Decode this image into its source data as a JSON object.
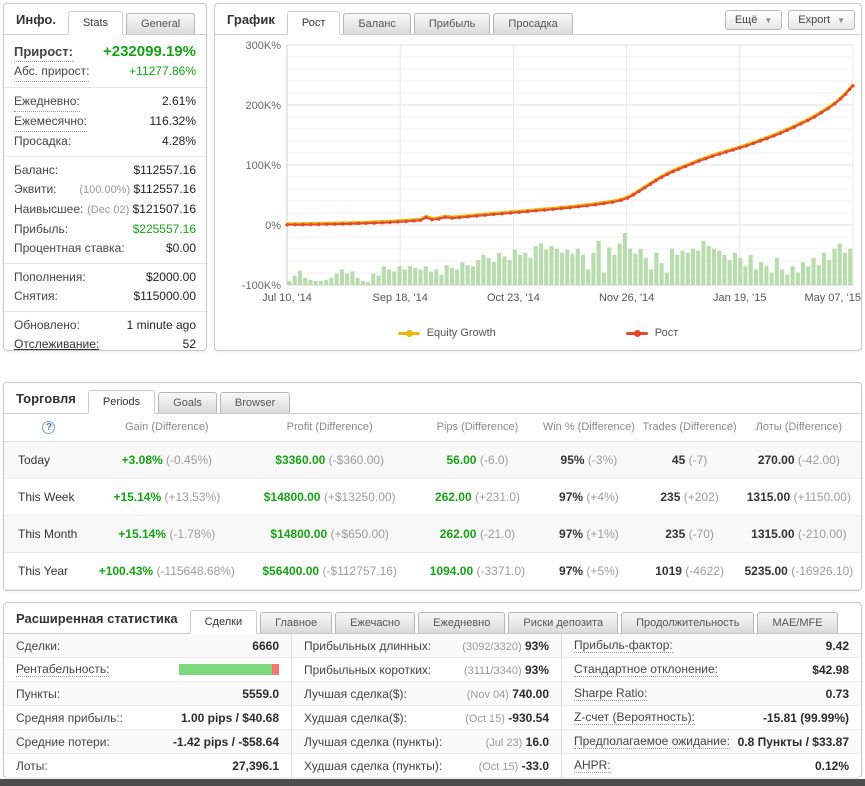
{
  "colors": {
    "green": "#17a117",
    "line_red": "#e5492c",
    "equity_yellow": "#e9b711",
    "volume_green": "#b9dcae"
  },
  "info": {
    "title": "Инфо.",
    "tabs": [
      {
        "label": "Stats"
      },
      {
        "label": "General"
      }
    ],
    "gain_label": "Прирост:",
    "gain_value": "+232099.19%",
    "abs_gain_label": "Абс. прирост:",
    "abs_gain_value": "+11277.86%",
    "group2": [
      {
        "label": "Ежедневно:",
        "value": "2.61%"
      },
      {
        "label": "Ежемесячно:",
        "value": "116.32%"
      },
      {
        "label": "Просадка:",
        "value": "4.28%"
      }
    ],
    "group3": [
      {
        "label": "Баланс:",
        "pre": "",
        "value": "$112557.16"
      },
      {
        "label": "Эквити:",
        "pre": "(100.00%)",
        "value": "$112557.16"
      },
      {
        "label": "Наивысшее:",
        "pre": "(Dec 02)",
        "value": "$121507.16"
      },
      {
        "label": "Прибыль:",
        "pre": "",
        "value": "$225557.16"
      },
      {
        "label": "Процентная ставка:",
        "pre": "",
        "value": "$0.00"
      }
    ],
    "group4": [
      {
        "label": "Пополнения:",
        "value": "$2000.00"
      },
      {
        "label": "Снятия:",
        "value": "$115000.00"
      }
    ],
    "updated_label": "Обновлено:",
    "updated_value": "1 minute ago",
    "tracking_label": "Отслеживание:",
    "tracking_value": "52"
  },
  "chart": {
    "title": "График",
    "tabs": [
      {
        "label": "Рост"
      },
      {
        "label": "Баланс"
      },
      {
        "label": "Прибыль"
      },
      {
        "label": "Просадка"
      }
    ],
    "more_button": "Ещё",
    "export_button": "Export",
    "legend": [
      {
        "label": "Equity Growth",
        "color": "#e9b711"
      },
      {
        "label": "Рост",
        "color": "#e5492c"
      }
    ]
  },
  "chart_data": {
    "type": "line",
    "title": "Рост",
    "ylabel": "",
    "xlabel": "",
    "y_unit": "K%",
    "ylim": [
      -100,
      300
    ],
    "y_ticks": [
      {
        "v": 300,
        "label": "300K%"
      },
      {
        "v": 200,
        "label": "200K%"
      },
      {
        "v": 100,
        "label": "100K%"
      },
      {
        "v": 0,
        "label": "0%"
      },
      {
        "v": -100,
        "label": "-100K%"
      }
    ],
    "x_ticks": [
      "Jul 10, '14",
      "Sep 18, '14",
      "Oct 23, '14",
      "Nov 26, '14",
      "Jan 19, '15",
      "May 07, '15"
    ],
    "series": [
      {
        "name": "Equity Growth",
        "color": "#e9b711"
      },
      {
        "name": "Рост",
        "color": "#e5492c"
      }
    ],
    "points": [
      [
        0,
        0.3
      ],
      [
        1.4,
        0.4
      ],
      [
        2.8,
        0.5
      ],
      [
        4.2,
        0.7
      ],
      [
        5.6,
        0.9
      ],
      [
        7,
        1.1
      ],
      [
        8.4,
        1.4
      ],
      [
        9.8,
        1.7
      ],
      [
        11.2,
        2.0
      ],
      [
        12.6,
        2.4
      ],
      [
        14,
        2.8
      ],
      [
        15.4,
        3.3
      ],
      [
        16.8,
        3.8
      ],
      [
        18.2,
        4.4
      ],
      [
        19.6,
        5.1
      ],
      [
        21,
        5.9
      ],
      [
        22.4,
        6.8
      ],
      [
        23.6,
        7.8
      ],
      [
        24.6,
        12.5
      ],
      [
        25.6,
        9
      ],
      [
        26.8,
        10
      ],
      [
        28,
        13
      ],
      [
        29.2,
        11.5
      ],
      [
        30.5,
        12.5
      ],
      [
        32,
        13.8
      ],
      [
        33.5,
        15
      ],
      [
        35,
        16.3
      ],
      [
        36.5,
        17.6
      ],
      [
        38,
        18.8
      ],
      [
        39.5,
        20
      ],
      [
        41,
        21.2
      ],
      [
        42.5,
        22.4
      ],
      [
        44,
        23.6
      ],
      [
        45.5,
        24.9
      ],
      [
        47,
        26.2
      ],
      [
        48.5,
        27.5
      ],
      [
        50,
        28.9
      ],
      [
        51.5,
        30.4
      ],
      [
        53,
        32
      ],
      [
        54.5,
        33.8
      ],
      [
        56,
        35.8
      ],
      [
        57.5,
        38
      ],
      [
        59,
        41
      ],
      [
        60.2,
        45
      ],
      [
        61.2,
        50
      ],
      [
        62.2,
        56
      ],
      [
        63.2,
        62
      ],
      [
        64.2,
        68
      ],
      [
        65.2,
        74
      ],
      [
        66.2,
        79.5
      ],
      [
        67.2,
        84.5
      ],
      [
        68.2,
        89
      ],
      [
        69.2,
        93
      ],
      [
        70.4,
        97.5
      ],
      [
        71.6,
        102
      ],
      [
        72.8,
        106.5
      ],
      [
        74,
        110.5
      ],
      [
        75.2,
        114.5
      ],
      [
        76.4,
        118
      ],
      [
        77.6,
        121.5
      ],
      [
        78.8,
        125
      ],
      [
        80,
        128.5
      ],
      [
        81.2,
        132
      ],
      [
        82.4,
        136
      ],
      [
        83.6,
        140
      ],
      [
        84.8,
        144
      ],
      [
        86,
        148.5
      ],
      [
        87.2,
        153
      ],
      [
        88.4,
        158
      ],
      [
        89.6,
        163
      ],
      [
        90.8,
        168.5
      ],
      [
        92,
        174
      ],
      [
        93.2,
        180
      ],
      [
        94.4,
        187
      ],
      [
        95.6,
        194
      ],
      [
        96.8,
        202
      ],
      [
        97.8,
        210
      ],
      [
        98.7,
        218
      ],
      [
        99.4,
        226
      ],
      [
        100,
        232
      ]
    ],
    "volume": {
      "color": "#b9dcae",
      "values": [
        8,
        18,
        28,
        14,
        10,
        8,
        8,
        10,
        14,
        22,
        30,
        22,
        26,
        14,
        8,
        6,
        22,
        18,
        36,
        30,
        26,
        36,
        30,
        36,
        33,
        30,
        36,
        26,
        30,
        20,
        38,
        33,
        30,
        44,
        38,
        36,
        48,
        58,
        52,
        44,
        62,
        55,
        48,
        68,
        58,
        62,
        52,
        75,
        80,
        68,
        75,
        70,
        62,
        68,
        60,
        70,
        58,
        30,
        62,
        85,
        24,
        72,
        58,
        80,
        100,
        70,
        60,
        70,
        52,
        30,
        62,
        42,
        24,
        70,
        58,
        66,
        62,
        70,
        66,
        85,
        75,
        70,
        66,
        58,
        48,
        62,
        52,
        36,
        58,
        30,
        44,
        36,
        24,
        52,
        30,
        20,
        36,
        24,
        44,
        36,
        52,
        38,
        62,
        48,
        70,
        80,
        62,
        70
      ]
    },
    "legend_position": "bottom",
    "grid": true
  },
  "trading": {
    "title": "Торговля",
    "tabs": [
      {
        "label": "Periods"
      },
      {
        "label": "Goals"
      },
      {
        "label": "Browser"
      }
    ],
    "help_icon": "?",
    "columns": [
      "Gain (Difference)",
      "Profit (Difference)",
      "Pips (Difference)",
      "Win % (Difference)",
      "Trades (Difference)",
      "Лоты (Difference)"
    ],
    "rows": [
      {
        "period": "Today",
        "gain": "+3.08%",
        "gain_diff": "(-0.45%)",
        "profit": "$3360.00",
        "profit_diff": "(-$360.00)",
        "pips": "56.00",
        "pips_diff": "(-6.0)",
        "win": "95%",
        "win_diff": "(-3%)",
        "trades": "45",
        "trades_diff": "(-7)",
        "lots": "270.00",
        "lots_diff": "(-42.00)"
      },
      {
        "period": "This Week",
        "gain": "+15.14%",
        "gain_diff": "(+13.53%)",
        "profit": "$14800.00",
        "profit_diff": "(+$13250.00)",
        "pips": "262.00",
        "pips_diff": "(+231.0)",
        "win": "97%",
        "win_diff": "(+4%)",
        "trades": "235",
        "trades_diff": "(+202)",
        "lots": "1315.00",
        "lots_diff": "(+1150.00)"
      },
      {
        "period": "This Month",
        "gain": "+15.14%",
        "gain_diff": "(-1.78%)",
        "profit": "$14800.00",
        "profit_diff": "(+$650.00)",
        "pips": "262.00",
        "pips_diff": "(-21.0)",
        "win": "97%",
        "win_diff": "(+1%)",
        "trades": "235",
        "trades_diff": "(-70)",
        "lots": "1315.00",
        "lots_diff": "(-210.00)"
      },
      {
        "period": "This Year",
        "gain": "+100.43%",
        "gain_diff": "(-115648.68%)",
        "profit": "$56400.00",
        "profit_diff": "(-$112757.16)",
        "pips": "1094.00",
        "pips_diff": "(-3371.0)",
        "win": "97%",
        "win_diff": "(+5%)",
        "trades": "1019",
        "trades_diff": "(-4622)",
        "lots": "5235.00",
        "lots_diff": "(-16926.10)"
      }
    ]
  },
  "stats": {
    "title": "Расширенная статистика",
    "tabs": [
      {
        "label": "Сделки"
      },
      {
        "label": "Главное"
      },
      {
        "label": "Ежечасно"
      },
      {
        "label": "Ежедневно"
      },
      {
        "label": "Риски депозита"
      },
      {
        "label": "Продолжительность"
      },
      {
        "label": "MAE/MFE"
      }
    ],
    "profitability": {
      "green": 93,
      "red": 7
    },
    "col1": [
      {
        "label": "Сделки:",
        "value": "6660"
      },
      {
        "label": "Рентабельность:",
        "value": ""
      },
      {
        "label": "Пункты:",
        "value": "5559.0"
      },
      {
        "label": "Средняя прибыль::",
        "value": "1.00 pips / $40.68"
      },
      {
        "label": "Средние потери:",
        "value": "-1.42 pips / -$58.64"
      },
      {
        "label": "Лоты:",
        "value": "27,396.1"
      }
    ],
    "col2": [
      {
        "label": "Прибыльных длинных:",
        "pre": "(3092/3320)",
        "value": "93%"
      },
      {
        "label": "Прибыльных коротких:",
        "pre": "(3111/3340)",
        "value": "93%"
      },
      {
        "label": "Лучшая сделка($):",
        "pre": "(Nov 04)",
        "value": "740.00"
      },
      {
        "label": "Худшая сделка($):",
        "pre": "(Oct 15)",
        "value": "-930.54"
      },
      {
        "label": "Лучшая сделка (пункты):",
        "pre": "(Jul 23)",
        "value": "16.0"
      },
      {
        "label": "Худшая сделка (пункты):",
        "pre": "(Oct 15)",
        "value": "-33.0"
      }
    ],
    "col3": [
      {
        "label": "Прибыль-фактор:",
        "value": "9.42"
      },
      {
        "label": "Стандартное отклонение:",
        "value": "$42.98"
      },
      {
        "label": "Sharpe Ratio:",
        "value": "0.73"
      },
      {
        "label": "Z-счет (Вероятность):",
        "value": "-15.81 (99.99%)"
      },
      {
        "label": "Предполагаемое ожидание:",
        "value": "0.8 Пункты / $33.87"
      },
      {
        "label": "AHPR:",
        "value": "0.12%"
      }
    ]
  }
}
